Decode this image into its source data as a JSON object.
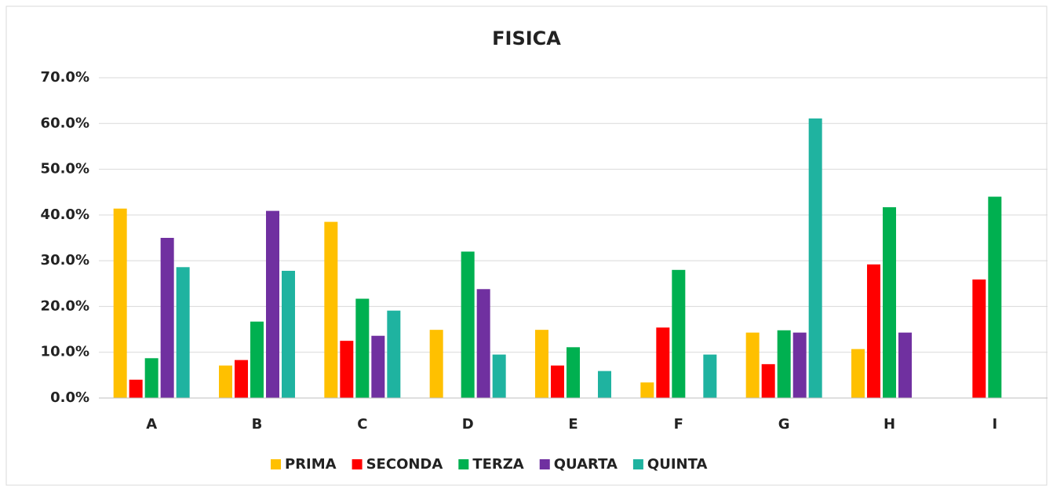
{
  "chart_data": {
    "type": "bar",
    "title": "FISICA",
    "categories": [
      "A",
      "B",
      "C",
      "D",
      "E",
      "F",
      "G",
      "H",
      "I"
    ],
    "series": [
      {
        "name": "PRIMA",
        "color": "#ffc000",
        "values": [
          41.4,
          7.1,
          38.5,
          14.9,
          14.9,
          3.4,
          14.3,
          10.7,
          0
        ]
      },
      {
        "name": "SECONDA",
        "color": "#ff0000",
        "values": [
          4.0,
          8.3,
          12.5,
          0,
          7.1,
          15.4,
          7.4,
          29.2,
          25.9
        ]
      },
      {
        "name": "TERZA",
        "color": "#00b050",
        "values": [
          8.7,
          16.7,
          21.7,
          32.0,
          11.1,
          28.0,
          14.8,
          41.7,
          44.0
        ]
      },
      {
        "name": "QUARTA",
        "color": "#7030a0",
        "values": [
          35.0,
          40.9,
          13.6,
          23.8,
          0,
          0,
          14.3,
          14.3,
          0
        ]
      },
      {
        "name": "QUINTA",
        "color": "#1fb3a0",
        "values": [
          28.6,
          27.8,
          19.1,
          9.5,
          5.9,
          9.5,
          61.1,
          0,
          0
        ]
      }
    ],
    "ylim": [
      0,
      70
    ],
    "yticks": [
      {
        "value": 0,
        "label": "0.0%"
      },
      {
        "value": 10,
        "label": "10.0%"
      },
      {
        "value": 20,
        "label": "20.0%"
      },
      {
        "value": 30,
        "label": "30.0%"
      },
      {
        "value": 40,
        "label": "40.0%"
      },
      {
        "value": 50,
        "label": "50.0%"
      },
      {
        "value": 60,
        "label": "60.0%"
      },
      {
        "value": 70,
        "label": "70.0%"
      }
    ],
    "grid": true,
    "legend": "bottom"
  }
}
